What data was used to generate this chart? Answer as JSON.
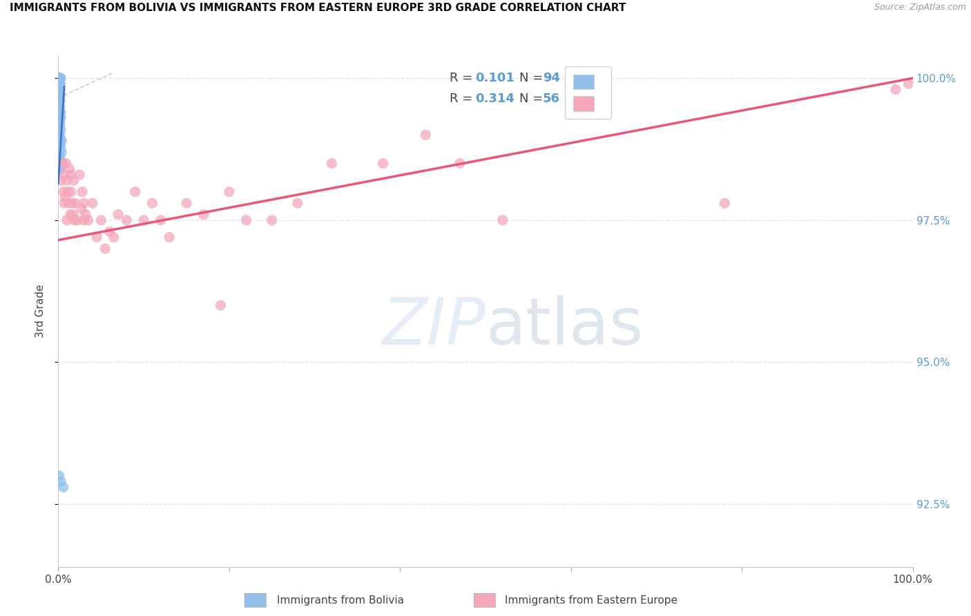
{
  "title": "IMMIGRANTS FROM BOLIVIA VS IMMIGRANTS FROM EASTERN EUROPE 3RD GRADE CORRELATION CHART",
  "source": "Source: ZipAtlas.com",
  "ylabel": "3rd Grade",
  "xlim": [
    0.0,
    1.0
  ],
  "ylim": [
    0.914,
    1.004
  ],
  "y_tick_values": [
    0.925,
    0.95,
    0.975,
    1.0
  ],
  "y_tick_labels": [
    "92.5%",
    "95.0%",
    "97.5%",
    "100.0%"
  ],
  "x_tick_values": [
    0.0,
    0.2,
    0.4,
    0.6,
    0.8,
    1.0
  ],
  "x_tick_labels": [
    "0.0%",
    "",
    "",
    "",
    "",
    "100.0%"
  ],
  "legend_r1": "R = 0.101",
  "legend_n1": "N = 94",
  "legend_r2": "R = 0.314",
  "legend_n2": "N = 56",
  "color_bolivia": "#92c0eb",
  "color_eastern": "#f4a7b9",
  "color_bolivia_line": "#4472c4",
  "color_eastern_line": "#e8577a",
  "color_dashed": "#b8cce4",
  "label_bolivia": "Immigrants from Bolivia",
  "label_eastern": "Immigrants from Eastern Europe",
  "background": "#ffffff",
  "bolivia_x": [
    0.001,
    0.001,
    0.002,
    0.001,
    0.002,
    0.001,
    0.003,
    0.001,
    0.001,
    0.002,
    0.001,
    0.002,
    0.001,
    0.002,
    0.001,
    0.001,
    0.001,
    0.002,
    0.001,
    0.001,
    0.002,
    0.001,
    0.002,
    0.001,
    0.001,
    0.002,
    0.001,
    0.001,
    0.001,
    0.002,
    0.001,
    0.001,
    0.002,
    0.001,
    0.001,
    0.001,
    0.002,
    0.001,
    0.001,
    0.002,
    0.001,
    0.001,
    0.001,
    0.002,
    0.001,
    0.001,
    0.002,
    0.001,
    0.001,
    0.001,
    0.002,
    0.001,
    0.001,
    0.002,
    0.001,
    0.001,
    0.002,
    0.001,
    0.001,
    0.002,
    0.001,
    0.001,
    0.003,
    0.001,
    0.002,
    0.001,
    0.001,
    0.003,
    0.001,
    0.002,
    0.001,
    0.001,
    0.003,
    0.001,
    0.002,
    0.001,
    0.004,
    0.001,
    0.002,
    0.001,
    0.003,
    0.001,
    0.004,
    0.001,
    0.002,
    0.001,
    0.003,
    0.001,
    0.005,
    0.001,
    0.002,
    0.001,
    0.003,
    0.006
  ],
  "bolivia_y": [
    1.0,
    1.0,
    1.0,
    1.0,
    1.0,
    1.0,
    1.0,
    1.0,
    1.0,
    1.0,
    1.0,
    1.0,
    0.999,
    0.999,
    0.999,
    0.999,
    0.999,
    0.999,
    0.999,
    0.999,
    0.999,
    0.999,
    0.999,
    0.999,
    0.999,
    0.999,
    0.999,
    0.999,
    0.999,
    0.999,
    0.999,
    0.998,
    0.998,
    0.998,
    0.998,
    0.998,
    0.998,
    0.998,
    0.998,
    0.998,
    0.998,
    0.998,
    0.997,
    0.997,
    0.997,
    0.997,
    0.997,
    0.997,
    0.997,
    0.997,
    0.997,
    0.997,
    0.996,
    0.996,
    0.996,
    0.996,
    0.996,
    0.995,
    0.995,
    0.995,
    0.995,
    0.995,
    0.994,
    0.994,
    0.994,
    0.993,
    0.993,
    0.993,
    0.992,
    0.992,
    0.992,
    0.991,
    0.991,
    0.99,
    0.99,
    0.99,
    0.989,
    0.989,
    0.989,
    0.988,
    0.988,
    0.987,
    0.987,
    0.986,
    0.986,
    0.986,
    0.985,
    0.985,
    0.985,
    0.984,
    0.984,
    0.93,
    0.929,
    0.928
  ],
  "eastern_x": [
    0.003,
    0.005,
    0.006,
    0.007,
    0.007,
    0.008,
    0.009,
    0.01,
    0.01,
    0.011,
    0.012,
    0.013,
    0.014,
    0.015,
    0.015,
    0.016,
    0.017,
    0.018,
    0.019,
    0.02,
    0.022,
    0.025,
    0.027,
    0.028,
    0.03,
    0.03,
    0.032,
    0.035,
    0.04,
    0.045,
    0.05,
    0.055,
    0.06,
    0.065,
    0.07,
    0.08,
    0.09,
    0.1,
    0.11,
    0.12,
    0.13,
    0.15,
    0.17,
    0.19,
    0.2,
    0.22,
    0.25,
    0.28,
    0.32,
    0.38,
    0.43,
    0.47,
    0.52,
    0.78,
    0.98,
    0.995
  ],
  "eastern_y": [
    0.982,
    0.985,
    0.98,
    0.978,
    0.983,
    0.979,
    0.985,
    0.975,
    0.982,
    0.98,
    0.978,
    0.984,
    0.976,
    0.98,
    0.983,
    0.978,
    0.976,
    0.982,
    0.975,
    0.978,
    0.975,
    0.983,
    0.977,
    0.98,
    0.978,
    0.975,
    0.976,
    0.975,
    0.978,
    0.972,
    0.975,
    0.97,
    0.973,
    0.972,
    0.976,
    0.975,
    0.98,
    0.975,
    0.978,
    0.975,
    0.972,
    0.978,
    0.976,
    0.96,
    0.98,
    0.975,
    0.975,
    0.978,
    0.985,
    0.985,
    0.99,
    0.985,
    0.975,
    0.978,
    0.998,
    0.999
  ],
  "bolivia_line_x": [
    0.0,
    0.007
  ],
  "bolivia_line_y": [
    0.9815,
    0.9985
  ],
  "eastern_line_x": [
    0.0,
    1.0
  ],
  "eastern_line_y": [
    0.9715,
    1.0
  ],
  "dashed_line_x": [
    0.0,
    0.065
  ],
  "dashed_line_y": [
    0.9965,
    1.001
  ]
}
